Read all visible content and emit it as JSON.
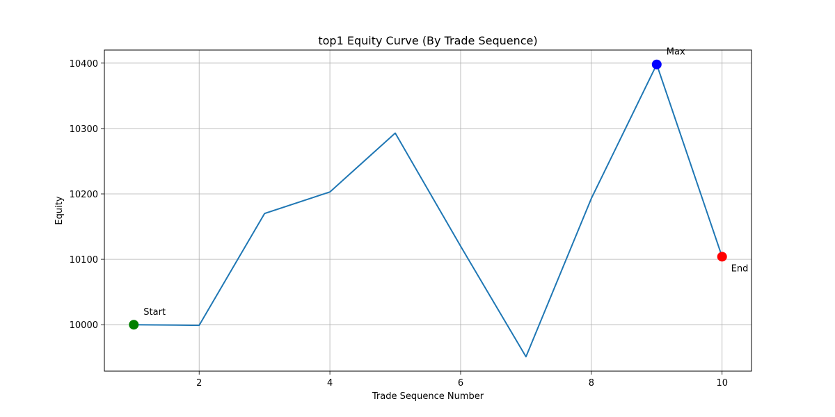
{
  "chart_data": {
    "type": "line",
    "title": "top1 Equity Curve (By Trade Sequence)",
    "xlabel": "Trade Sequence Number",
    "ylabel": "Equity",
    "x": [
      1,
      2,
      3,
      4,
      5,
      6,
      7,
      8,
      9,
      10
    ],
    "series": [
      {
        "values": [
          10000,
          9999,
          10170,
          10203,
          10293,
          10120,
          9951,
          10193,
          10398,
          10104
        ]
      }
    ],
    "xlim": [
      0.55,
      10.45
    ],
    "ylim": [
      9929,
      10420
    ],
    "xticks": [
      2,
      4,
      6,
      8,
      10
    ],
    "yticks": [
      10000,
      10100,
      10200,
      10300,
      10400
    ],
    "grid": true,
    "line_color": "#1f77b4",
    "annotations": [
      {
        "label": "Start",
        "x": 1,
        "y": 10000,
        "color": "#008000"
      },
      {
        "label": "Max",
        "x": 9,
        "y": 10398,
        "color": "#0000ff"
      },
      {
        "label": "End",
        "x": 10,
        "y": 10104,
        "color": "#ff0000"
      }
    ]
  }
}
